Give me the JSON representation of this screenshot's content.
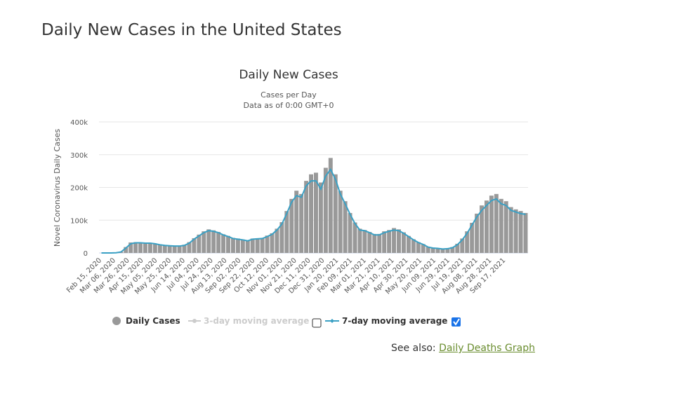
{
  "page": {
    "title": "Daily New Cases in the United States",
    "see_also_label": "See also:",
    "see_also_link": "Daily Deaths Graph"
  },
  "chart_data": {
    "type": "bar",
    "title": "Daily New Cases",
    "subtitle1": "Cases per Day",
    "subtitle2": "Data as of 0:00 GMT+0",
    "ylabel": "Novel Coronavirus Daily Cases",
    "ylim": [
      0,
      400000
    ],
    "yticks": [
      {
        "v": 0,
        "label": "0"
      },
      {
        "v": 100000,
        "label": "100k"
      },
      {
        "v": 200000,
        "label": "200k"
      },
      {
        "v": 300000,
        "label": "300k"
      },
      {
        "v": 400000,
        "label": "400k"
      }
    ],
    "xticks": [
      "Feb 15, 2020",
      "Mar 06, 2020",
      "Mar 26, 2020",
      "Apr 15, 2020",
      "May 05, 2020",
      "May 25, 2020",
      "Jun 14, 2020",
      "Jul 04, 2020",
      "Jul 24, 2020",
      "Aug 13, 2020",
      "Sep 02, 2020",
      "Sep 22, 2020",
      "Oct 12, 2020",
      "Nov 01, 2020",
      "Nov 21, 2020",
      "Dec 11, 2020",
      "Dec 31, 2020",
      "Jan 20, 2021",
      "Feb 09, 2021",
      "Mar 01, 2021",
      "Mar 21, 2021",
      "Apr 10, 2021",
      "Apr 30, 2021",
      "May 20, 2021",
      "Jun 09, 2021",
      "Jun 29, 2021",
      "Jul 19, 2021",
      "Aug 08, 2021",
      "Aug 28, 2021",
      "Sep 17, 2021"
    ],
    "x_interval_days": 7,
    "series": [
      {
        "name": "Daily Cases",
        "color": "#999999",
        "values": [
          0,
          0,
          100,
          600,
          4000,
          18000,
          32000,
          33000,
          32000,
          31000,
          31000,
          29000,
          26000,
          24000,
          23000,
          22000,
          22000,
          25000,
          33000,
          45000,
          56000,
          66000,
          72000,
          69000,
          64000,
          57000,
          52000,
          46000,
          44000,
          41000,
          38000,
          44000,
          45000,
          46000,
          53000,
          60000,
          74000,
          94000,
          128000,
          165000,
          190000,
          180000,
          220000,
          240000,
          245000,
          215000,
          260000,
          290000,
          240000,
          190000,
          158000,
          122000,
          93000,
          74000,
          70000,
          64000,
          58000,
          58000,
          66000,
          70000,
          76000,
          72000,
          63000,
          52000,
          42000,
          33000,
          27000,
          19000,
          16000,
          15000,
          13000,
          14000,
          18000,
          28000,
          44000,
          66000,
          92000,
          120000,
          145000,
          160000,
          175000,
          180000,
          165000,
          158000,
          140000,
          133000,
          128000,
          122000
        ]
      },
      {
        "name": "7-day moving average",
        "color": "#3aa0c4",
        "values": [
          0,
          0,
          100,
          500,
          3000,
          15000,
          28000,
          31000,
          31000,
          30000,
          30000,
          28000,
          25000,
          23000,
          22000,
          21000,
          21000,
          23000,
          30000,
          42000,
          52000,
          62000,
          68000,
          66000,
          62000,
          55000,
          50000,
          44000,
          42000,
          40000,
          37000,
          42000,
          43000,
          44000,
          50000,
          57000,
          70000,
          88000,
          120000,
          155000,
          175000,
          170000,
          205000,
          220000,
          220000,
          195000,
          235000,
          255000,
          225000,
          180000,
          150000,
          118000,
          90000,
          70000,
          68000,
          62000,
          55000,
          55000,
          62000,
          66000,
          70000,
          68000,
          60000,
          50000,
          40000,
          32000,
          26000,
          18000,
          15000,
          14000,
          12000,
          13000,
          16000,
          25000,
          40000,
          60000,
          85000,
          110000,
          130000,
          145000,
          160000,
          165000,
          150000,
          145000,
          130000,
          125000,
          120000,
          118000
        ]
      }
    ],
    "legend": [
      {
        "label": "Daily Cases",
        "enabled": true
      },
      {
        "label": "3-day moving average",
        "enabled": false,
        "checked": false
      },
      {
        "label": "7-day moving average",
        "enabled": true,
        "checked": true
      }
    ],
    "legend_position": "bottom"
  }
}
